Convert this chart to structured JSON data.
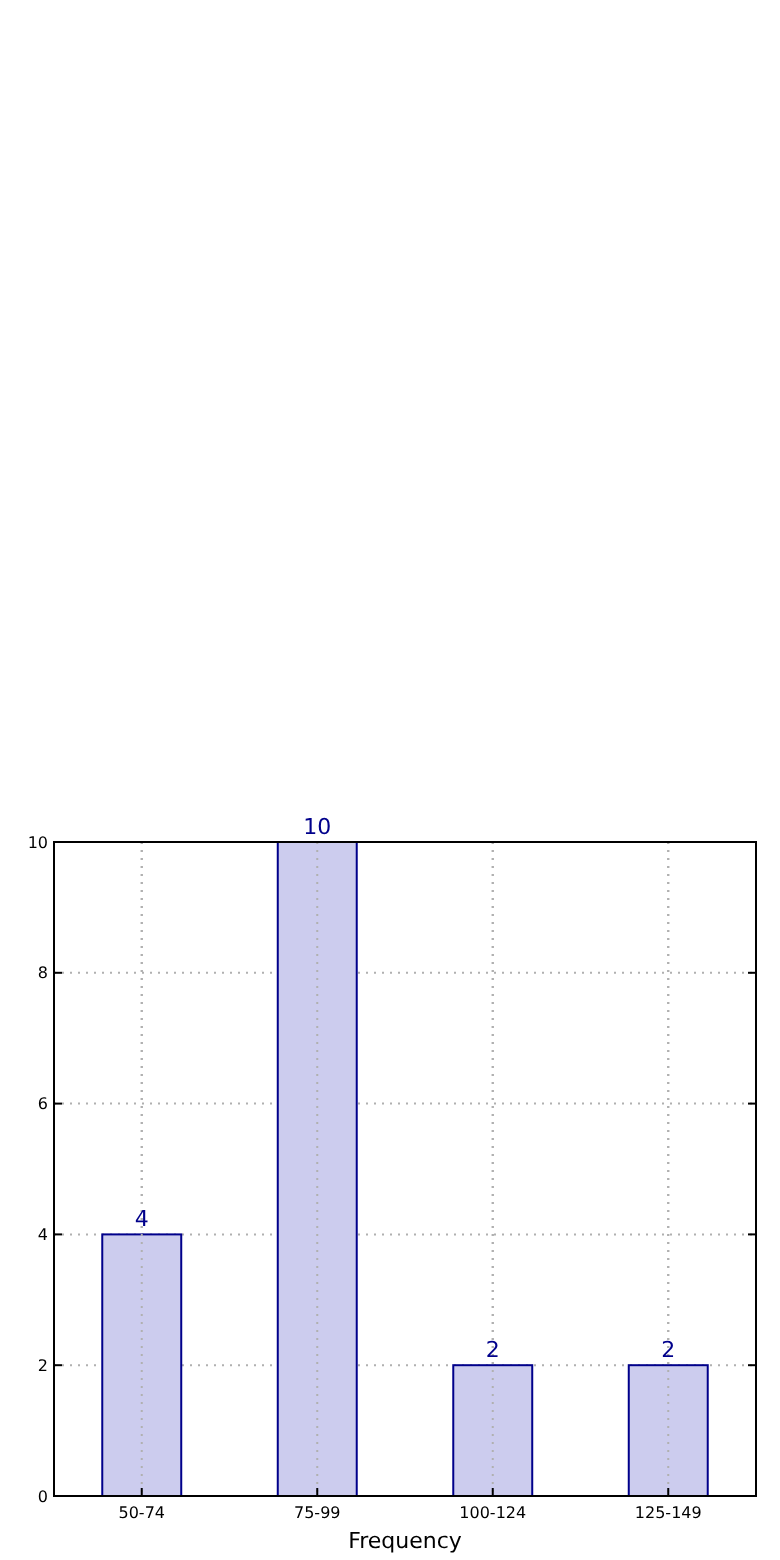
{
  "chart_data": {
    "type": "bar",
    "xlabel": "Frequency",
    "categories": [
      "50-74",
      "75-99",
      "100-124",
      "125-149"
    ],
    "values": [
      4,
      10,
      2,
      2
    ],
    "color": "#ccccee",
    "ylim": [
      0,
      10
    ],
    "yticks": [
      0,
      2,
      4,
      6,
      8,
      10
    ],
    "grid": true,
    "data_labels": true
  }
}
